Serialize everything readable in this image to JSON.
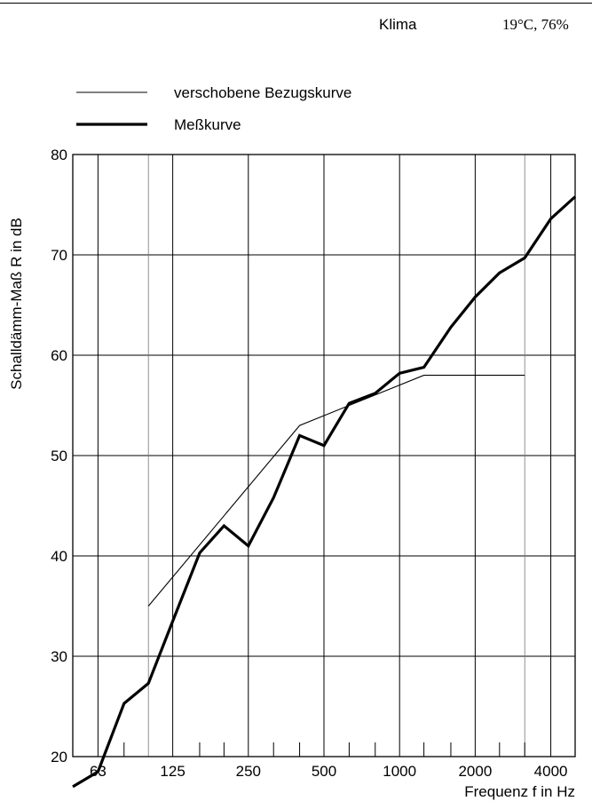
{
  "header": {
    "klima_label": "Klima",
    "klima_value": "19°C, 76%"
  },
  "chart_data": {
    "type": "line",
    "xscale": "log",
    "xlim": [
      50,
      5000
    ],
    "ylim": [
      20,
      80
    ],
    "xlabel": "Frequenz f in Hz",
    "ylabel": "Schalldämm-Maß R in dB",
    "grid": true,
    "legend_position": "top-left",
    "ytick_labels": [
      "20",
      "30",
      "40",
      "50",
      "60",
      "70",
      "80"
    ],
    "ytick_values": [
      20,
      30,
      40,
      50,
      60,
      70,
      80
    ],
    "xtick_labels": [
      "63",
      "125",
      "250",
      "500",
      "1000",
      "2000",
      "4000"
    ],
    "xtick_values": [
      63,
      125,
      250,
      500,
      1000,
      2000,
      4000
    ],
    "series": [
      {
        "name": "verschobene Bezugskurve",
        "style": "thin",
        "x": [
          100,
          400,
          1250,
          3150
        ],
        "y": [
          35,
          53,
          58,
          58
        ]
      },
      {
        "name": "Meßkurve",
        "style": "thick",
        "x": [
          50,
          63,
          80,
          100,
          125,
          160,
          200,
          250,
          315,
          400,
          500,
          630,
          800,
          1000,
          1250,
          1600,
          2000,
          2500,
          3150,
          4000,
          5000
        ],
        "y": [
          17,
          18.5,
          25.3,
          27.3,
          33.5,
          40.3,
          43,
          41,
          45.8,
          52,
          51,
          55.2,
          56.2,
          58.2,
          58.8,
          62.8,
          65.8,
          68.2,
          69.7,
          73.6,
          75.8
        ]
      }
    ]
  }
}
